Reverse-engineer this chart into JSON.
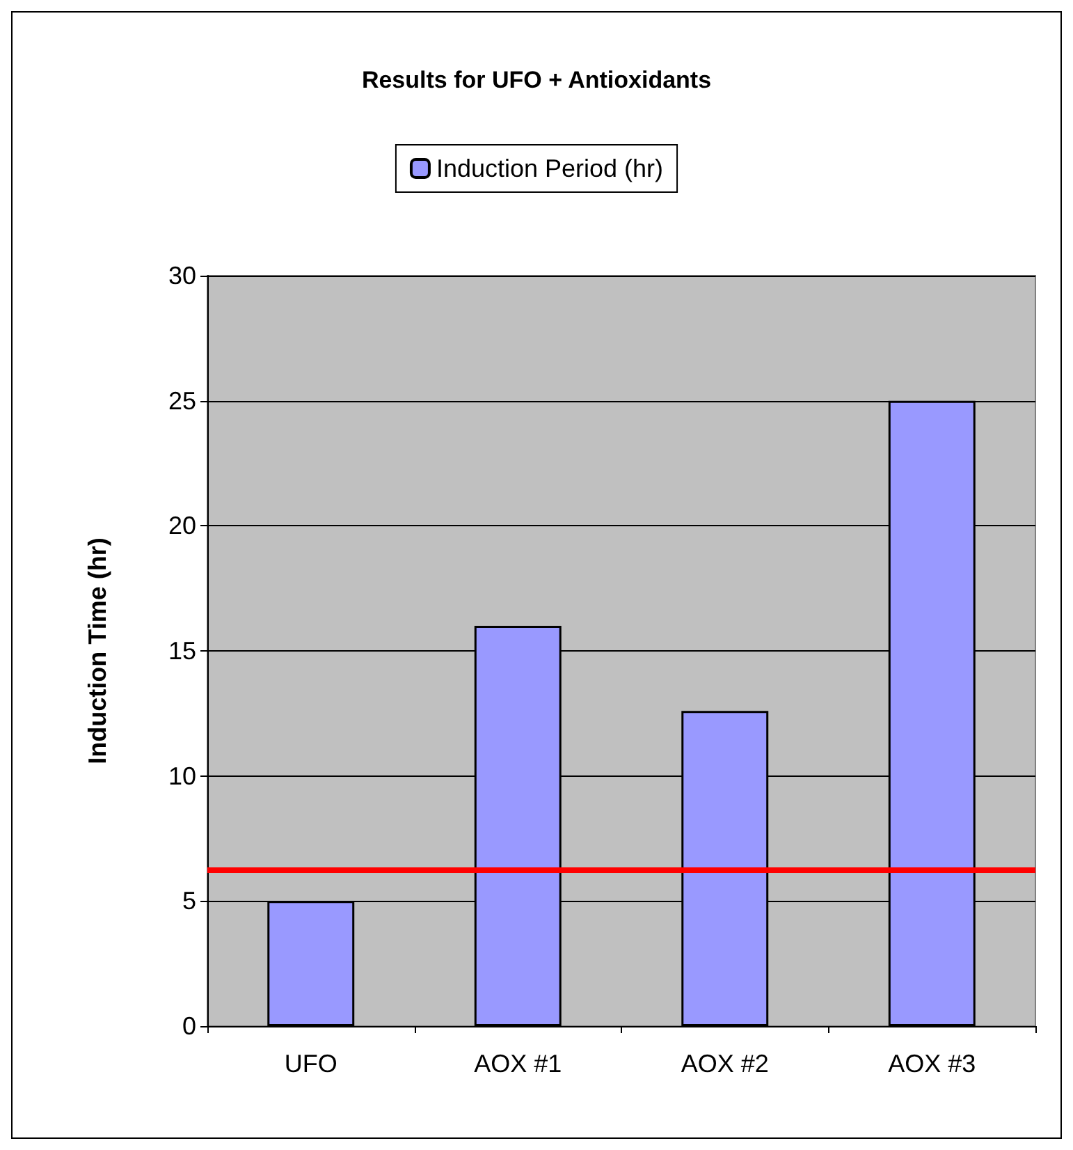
{
  "chart_data": {
    "type": "bar",
    "title": "Results for UFO + Antioxidants",
    "ylabel": "Induction Time (hr)",
    "categories": [
      "UFO",
      "AOX #1",
      "AOX #2",
      "AOX #3"
    ],
    "series": [
      {
        "name": "Induction Period (hr)",
        "color": "#9999ff",
        "values": [
          5,
          16,
          12.6,
          25
        ]
      }
    ],
    "ylim": [
      0,
      30
    ],
    "yticks": [
      0,
      5,
      10,
      15,
      20,
      25,
      30
    ],
    "grid": "y",
    "legend": "top",
    "ref_lines": [
      {
        "axis": "y",
        "value": 6.25,
        "color": "#ff0000"
      }
    ]
  }
}
